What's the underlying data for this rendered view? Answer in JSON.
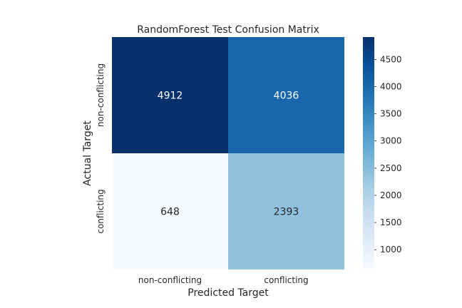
{
  "chart_data": {
    "type": "heatmap",
    "title": "RandomForest Test Confusion Matrix",
    "xlabel": "Predicted Target",
    "ylabel": "Actual Target",
    "x_categories": [
      "non-conflicting",
      "conflicting"
    ],
    "y_categories": [
      "non-conflicting",
      "conflicting"
    ],
    "matrix": [
      [
        4912,
        4036
      ],
      [
        648,
        2393
      ]
    ],
    "colormap": "Blues",
    "colorbar": {
      "min": 648,
      "max": 4912,
      "ticks": [
        1000,
        1500,
        2000,
        2500,
        3000,
        3500,
        4000,
        4500
      ],
      "tick_labels": [
        "1000",
        "1500",
        "2000",
        "2500",
        "3000",
        "3500",
        "4000",
        "4500"
      ]
    },
    "colors": {
      "light": "#f7fbff",
      "dark": "#08306b",
      "text_on_dark": "#ffffff",
      "text_on_light": "#262626"
    }
  }
}
